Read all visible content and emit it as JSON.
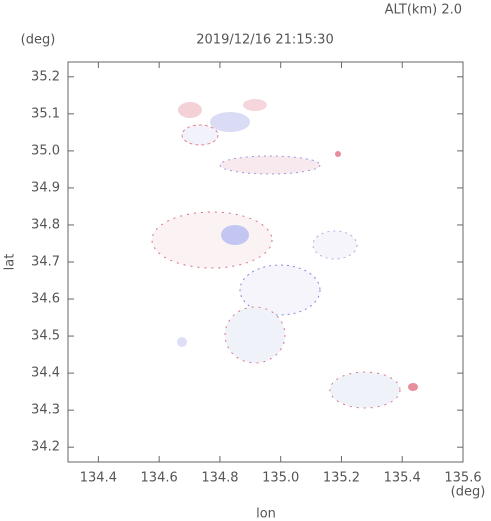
{
  "chart_data": {
    "type": "map",
    "title": "2019/12/16 21:15:30",
    "annotation": "ALT(km)  2.0",
    "xlabel": "lon",
    "ylabel": "lat",
    "xunit": "(deg)",
    "yunit": "(deg)",
    "xlim": [
      134.3,
      135.6
    ],
    "ylim": [
      34.16,
      35.24
    ],
    "xticks": [
      134.4,
      134.6,
      134.8,
      {
        "value": 135,
        "label": "135.0"
      },
      135.2,
      135.4,
      135.6
    ],
    "yticks": [
      34.2,
      34.3,
      34.4,
      34.5,
      34.6,
      34.7,
      34.8,
      34.9,
      {
        "value": 35,
        "label": "35.0"
      },
      35.1,
      35.2
    ]
  }
}
